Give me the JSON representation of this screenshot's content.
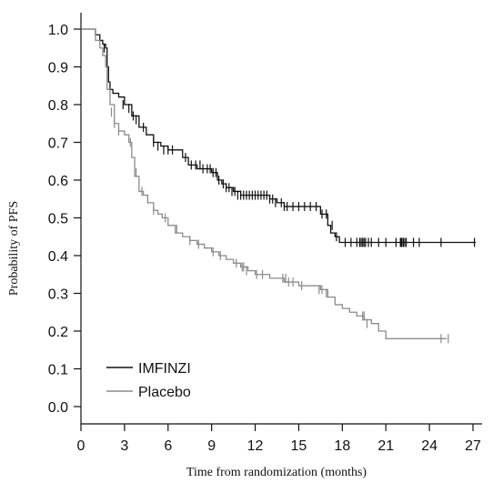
{
  "chart_data": {
    "type": "line",
    "xlabel": "Time from randomization (months)",
    "ylabel": "Probability of PFS",
    "xlim": [
      0,
      27
    ],
    "ylim": [
      0,
      1.0
    ],
    "xticks": [
      0,
      3,
      6,
      9,
      12,
      15,
      18,
      21,
      24,
      27
    ],
    "yticks": [
      0.0,
      0.1,
      0.2,
      0.3,
      0.4,
      0.5,
      0.6,
      0.7,
      0.8,
      0.9,
      1.0
    ],
    "grid": false,
    "legend_position": "bottom-left",
    "series": [
      {
        "name": "IMFINZI",
        "color": "#111111",
        "x": [
          0,
          1.0,
          1.3,
          1.5,
          1.7,
          1.8,
          1.9,
          2.0,
          2.2,
          2.6,
          3.0,
          3.5,
          4.0,
          4.5,
          5.0,
          5.5,
          6.0,
          7.0,
          7.4,
          8.0,
          9.0,
          9.4,
          9.7,
          10.0,
          10.5,
          11.0,
          11.5,
          13.0,
          13.5,
          14.0,
          14.5,
          15.0,
          16.0,
          16.5,
          17.0,
          17.2,
          17.5,
          17.8,
          27.2
        ],
        "y": [
          1.0,
          0.985,
          0.97,
          0.96,
          0.95,
          0.9,
          0.86,
          0.84,
          0.83,
          0.82,
          0.8,
          0.77,
          0.74,
          0.72,
          0.7,
          0.69,
          0.68,
          0.66,
          0.64,
          0.63,
          0.62,
          0.6,
          0.59,
          0.58,
          0.57,
          0.56,
          0.56,
          0.55,
          0.54,
          0.53,
          0.53,
          0.53,
          0.53,
          0.51,
          0.48,
          0.46,
          0.45,
          0.435,
          0.435
        ],
        "censor_x": [
          1.6,
          2.9,
          3.3,
          3.6,
          3.8,
          4.3,
          5.0,
          5.3,
          5.7,
          6.0,
          6.3,
          7.2,
          7.6,
          7.9,
          8.2,
          8.4,
          8.7,
          8.9,
          9.1,
          9.3,
          9.5,
          9.8,
          10.0,
          10.2,
          10.4,
          10.6,
          10.8,
          11.0,
          11.2,
          11.4,
          11.6,
          11.8,
          12.0,
          12.2,
          12.4,
          12.6,
          12.8,
          13.0,
          13.2,
          13.4,
          13.8,
          14.0,
          14.2,
          14.6,
          15.0,
          15.4,
          15.8,
          16.2,
          16.6,
          16.9,
          17.3,
          17.6,
          18.2,
          18.6,
          19.0,
          19.2,
          19.3,
          19.4,
          19.5,
          19.6,
          19.8,
          20.0,
          20.5,
          21.0,
          21.7,
          22.0,
          22.05,
          22.1,
          22.2,
          22.3,
          22.4,
          22.9,
          23.3,
          24.8,
          27.1
        ],
        "censor_y": [
          0.95,
          0.8,
          0.79,
          0.77,
          0.76,
          0.74,
          0.7,
          0.69,
          0.68,
          0.68,
          0.68,
          0.66,
          0.64,
          0.64,
          0.64,
          0.63,
          0.63,
          0.63,
          0.62,
          0.62,
          0.6,
          0.59,
          0.58,
          0.58,
          0.57,
          0.57,
          0.56,
          0.56,
          0.56,
          0.56,
          0.56,
          0.56,
          0.56,
          0.56,
          0.56,
          0.56,
          0.56,
          0.55,
          0.55,
          0.54,
          0.54,
          0.53,
          0.53,
          0.53,
          0.53,
          0.53,
          0.53,
          0.53,
          0.51,
          0.51,
          0.48,
          0.45,
          0.435,
          0.435,
          0.435,
          0.435,
          0.435,
          0.435,
          0.435,
          0.435,
          0.435,
          0.435,
          0.435,
          0.435,
          0.435,
          0.435,
          0.435,
          0.435,
          0.435,
          0.435,
          0.435,
          0.435,
          0.435,
          0.435,
          0.435
        ]
      },
      {
        "name": "Placebo",
        "color": "#8c8c8c",
        "x": [
          0,
          1.0,
          1.3,
          1.5,
          1.7,
          1.8,
          2.0,
          2.3,
          2.6,
          3.0,
          3.3,
          3.5,
          3.7,
          4.0,
          4.3,
          4.6,
          5.0,
          5.3,
          5.6,
          6.0,
          6.5,
          7.0,
          7.5,
          8.0,
          8.5,
          9.0,
          9.5,
          10.0,
          10.5,
          11.0,
          11.5,
          12.0,
          13.0,
          14.0,
          15.0,
          16.0,
          16.5,
          17.0,
          17.5,
          18.0,
          18.5,
          19.0,
          19.5,
          20.0,
          20.5,
          21.0,
          21.5,
          25.2
        ],
        "y": [
          1.0,
          0.97,
          0.95,
          0.93,
          0.9,
          0.84,
          0.8,
          0.75,
          0.73,
          0.72,
          0.7,
          0.66,
          0.61,
          0.57,
          0.56,
          0.54,
          0.52,
          0.51,
          0.5,
          0.48,
          0.46,
          0.45,
          0.44,
          0.43,
          0.42,
          0.41,
          0.4,
          0.39,
          0.38,
          0.37,
          0.36,
          0.35,
          0.34,
          0.33,
          0.32,
          0.32,
          0.31,
          0.29,
          0.27,
          0.26,
          0.25,
          0.24,
          0.23,
          0.22,
          0.2,
          0.18,
          0.18,
          0.18
        ],
        "censor_x": [
          2.1,
          2.3,
          2.6,
          3.4,
          3.8,
          4.2,
          4.6,
          5.0,
          5.8,
          6.6,
          7.5,
          8.1,
          9.1,
          9.6,
          10.7,
          11.1,
          11.2,
          11.4,
          12.1,
          12.5,
          13.9,
          14.1,
          14.3,
          14.6,
          15.2,
          16.4,
          16.6,
          16.9,
          19.4,
          19.5,
          19.7,
          24.8,
          25.3
        ],
        "censor_y": [
          0.78,
          0.75,
          0.73,
          0.7,
          0.62,
          0.57,
          0.55,
          0.52,
          0.5,
          0.47,
          0.44,
          0.43,
          0.41,
          0.4,
          0.38,
          0.37,
          0.37,
          0.36,
          0.35,
          0.35,
          0.34,
          0.34,
          0.33,
          0.33,
          0.32,
          0.31,
          0.31,
          0.3,
          0.24,
          0.24,
          0.22,
          0.18,
          0.18
        ]
      }
    ]
  }
}
